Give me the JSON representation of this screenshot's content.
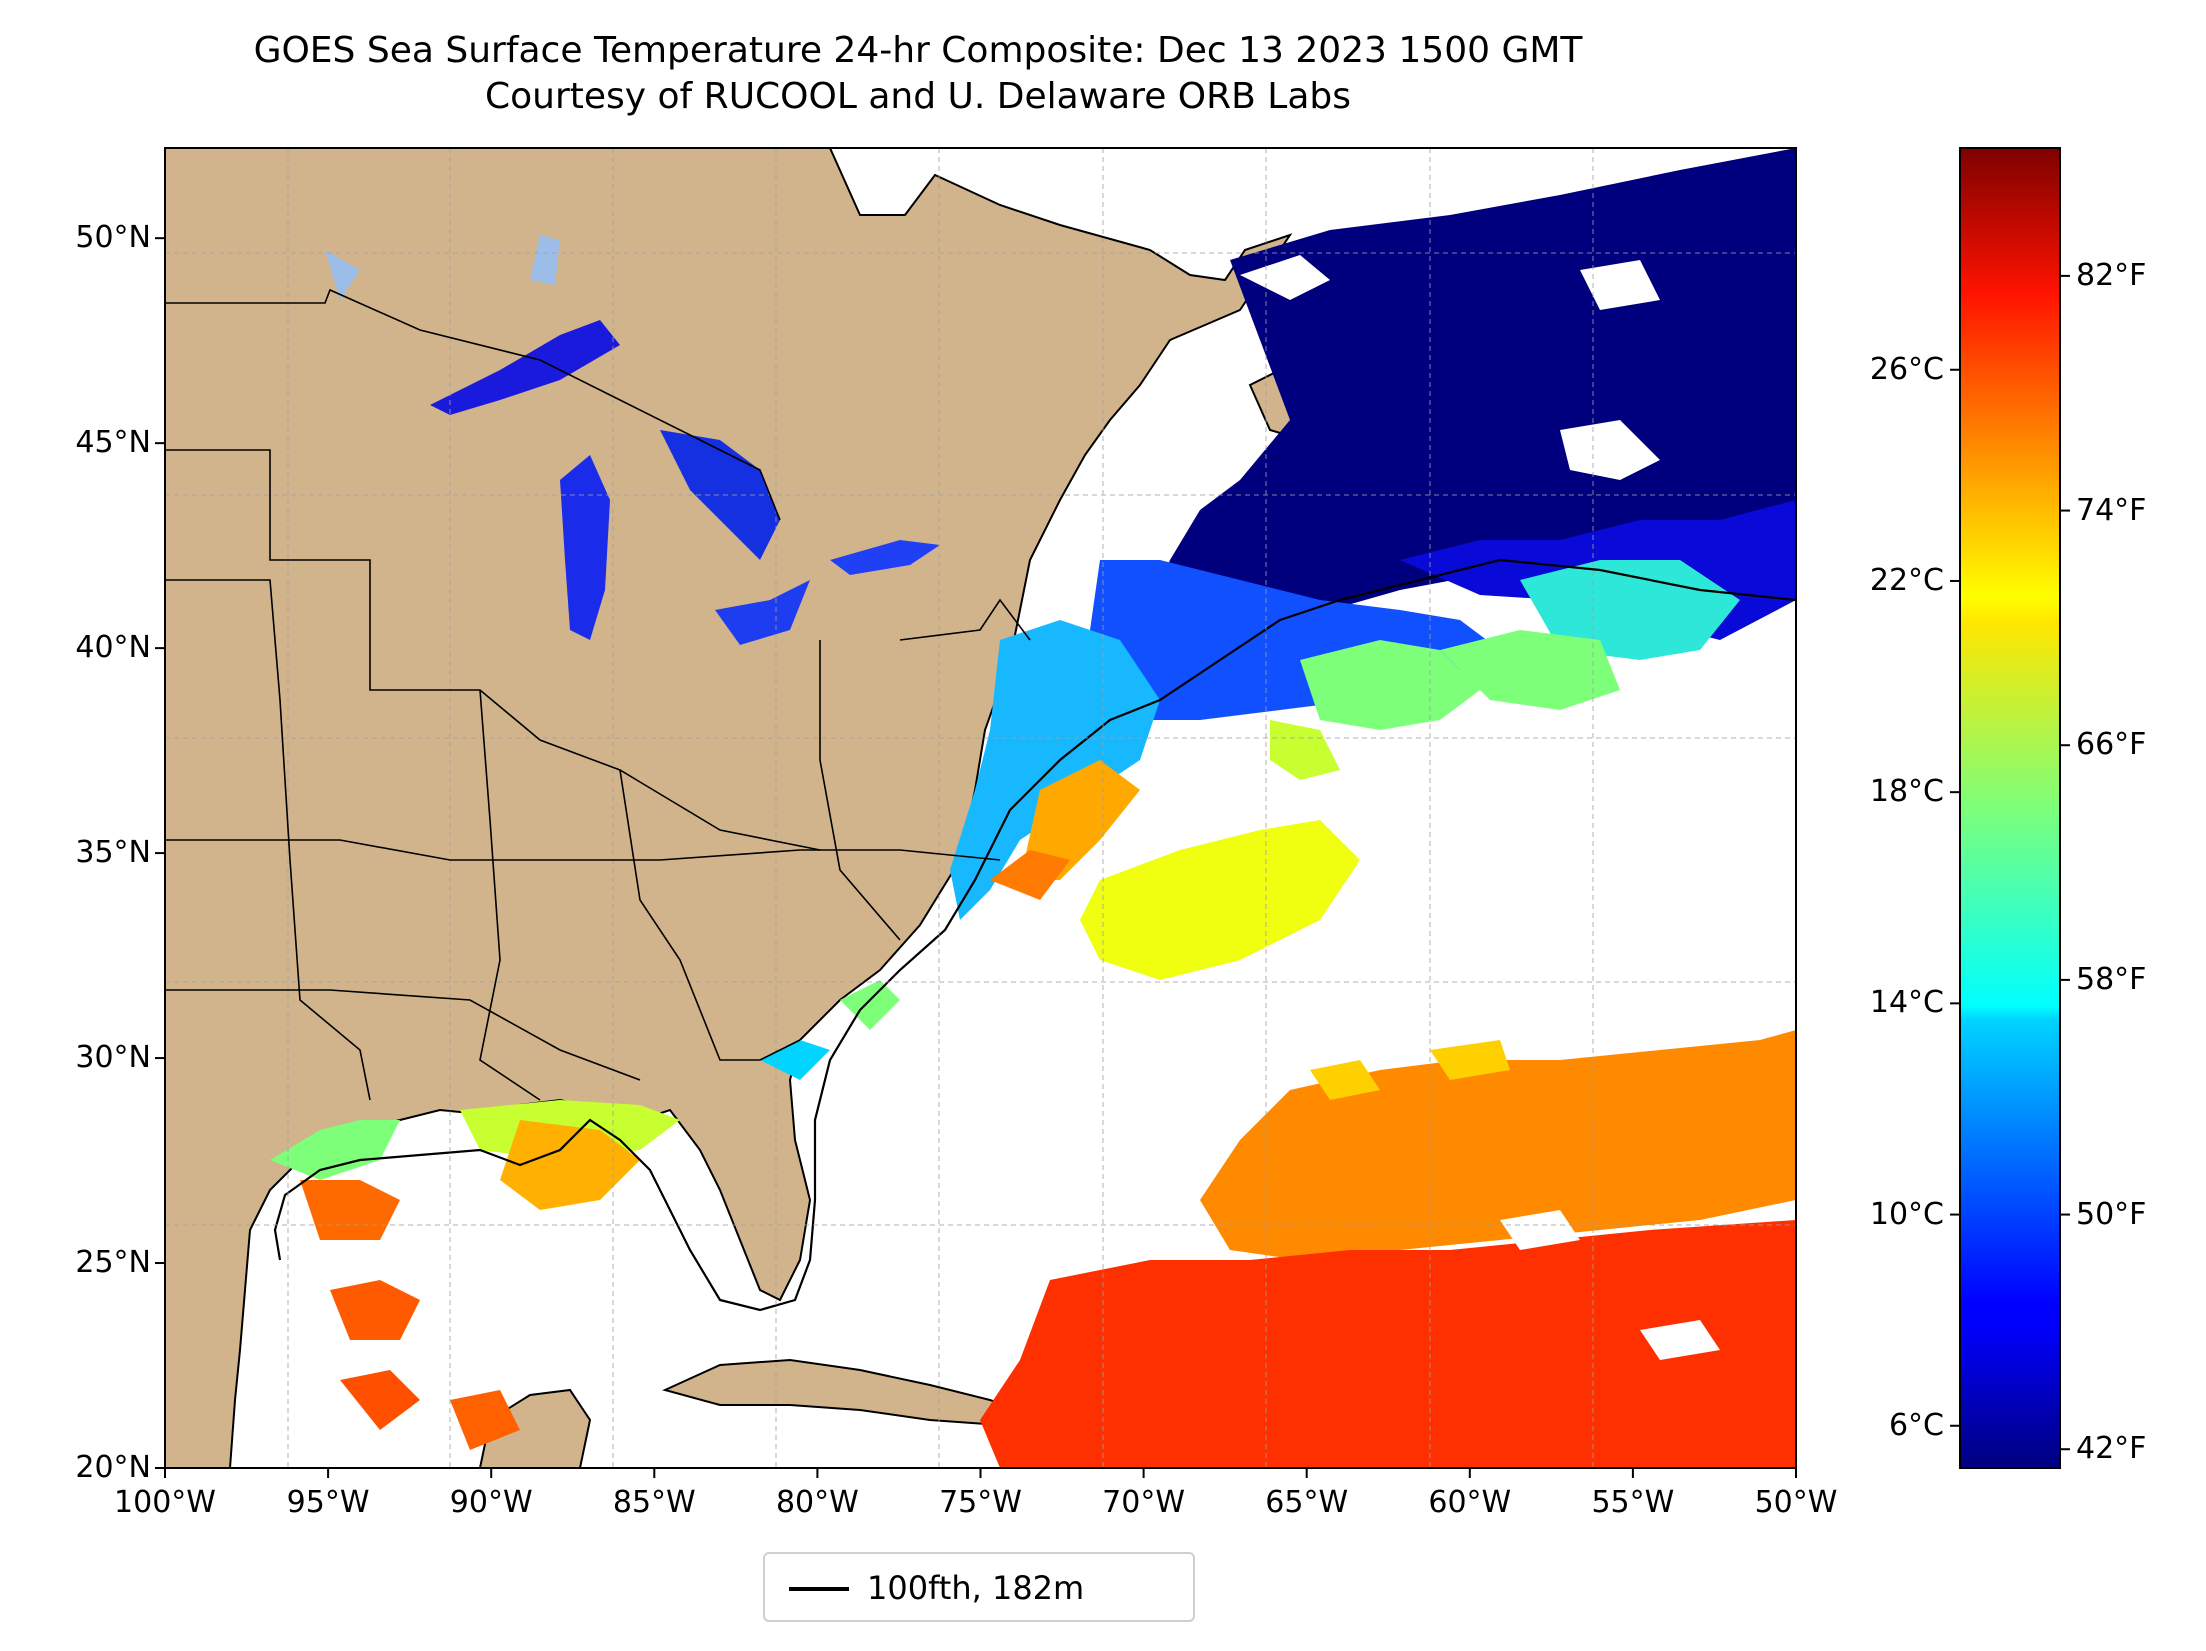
{
  "title": {
    "line1": "GOES Sea Surface Temperature 24-hr Composite: Dec 13 2023 1500 GMT",
    "line2": "Courtesy of RUCOOL and U. Delaware ORB Labs"
  },
  "map": {
    "lon_range": [
      -100,
      -50
    ],
    "lat_range": [
      20,
      52.2
    ],
    "lat_ticks": [
      {
        "value": 50,
        "label": "50°N"
      },
      {
        "value": 45,
        "label": "45°N"
      },
      {
        "value": 40,
        "label": "40°N"
      },
      {
        "value": 35,
        "label": "35°N"
      },
      {
        "value": 30,
        "label": "30°N"
      },
      {
        "value": 25,
        "label": "25°N"
      },
      {
        "value": 20,
        "label": "20°N"
      }
    ],
    "lon_ticks": [
      {
        "value": -100,
        "label": "100°W"
      },
      {
        "value": -95,
        "label": "95°W"
      },
      {
        "value": -90,
        "label": "90°W"
      },
      {
        "value": -85,
        "label": "85°W"
      },
      {
        "value": -80,
        "label": "80°W"
      },
      {
        "value": -75,
        "label": "75°W"
      },
      {
        "value": -70,
        "label": "70°W"
      },
      {
        "value": -65,
        "label": "65°W"
      },
      {
        "value": -60,
        "label": "60°W"
      },
      {
        "value": -55,
        "label": "55°W"
      },
      {
        "value": -50,
        "label": "50°W"
      }
    ],
    "gridlines": true,
    "colors": {
      "land": "#d2b48c",
      "lakes": "#9bbde8",
      "no_data": "#ffffff",
      "gridline": "#a0a0a0",
      "border": "#000000"
    }
  },
  "colorbar": {
    "colormap": "jet",
    "celsius_range": [
      5.2,
      30.2
    ],
    "celsius_ticks": [
      {
        "value": 6,
        "label": "6°C"
      },
      {
        "value": 10,
        "label": "10°C"
      },
      {
        "value": 14,
        "label": "14°C"
      },
      {
        "value": 18,
        "label": "18°C"
      },
      {
        "value": 22,
        "label": "22°C"
      },
      {
        "value": 26,
        "label": "26°C"
      }
    ],
    "fahrenheit_ticks": [
      {
        "value": 42,
        "label": "42°F"
      },
      {
        "value": 50,
        "label": "50°F"
      },
      {
        "value": 58,
        "label": "58°F"
      },
      {
        "value": 66,
        "label": "66°F"
      },
      {
        "value": 74,
        "label": "74°F"
      },
      {
        "value": 82,
        "label": "82°F"
      }
    ]
  },
  "legend": {
    "label": "100fth, 182m",
    "line_color": "#000000"
  }
}
